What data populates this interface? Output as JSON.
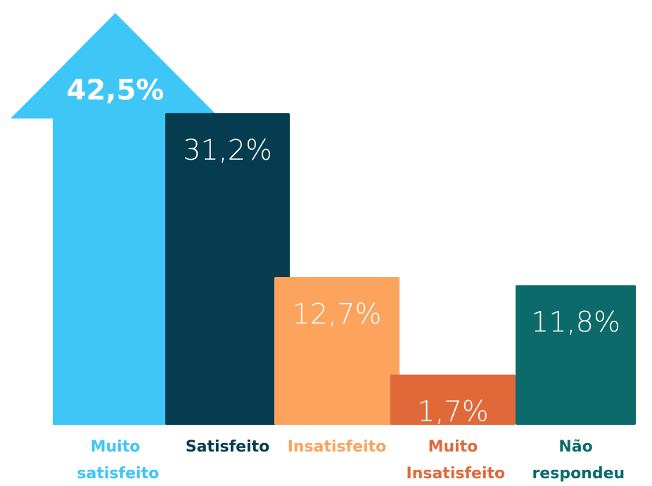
{
  "chart_data": {
    "type": "bar",
    "categories": [
      "Muito satisfeito",
      "Satisfeito",
      "Insatisfeito",
      "Muito Insatisfeito",
      "Não respondeu"
    ],
    "values": [
      42.5,
      31.2,
      12.7,
      1.7,
      11.8
    ],
    "value_labels": [
      "42,5%",
      "31,2%",
      "12,7%",
      "1,7%",
      "11,8%"
    ],
    "colors": [
      "#3ec6f6",
      "#063c50",
      "#fca35d",
      "#e0693a",
      "#0c6a6a"
    ]
  }
}
